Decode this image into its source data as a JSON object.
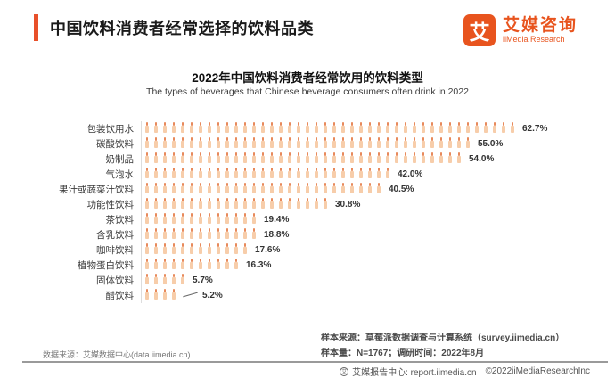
{
  "header": {
    "title": "中国饮料消费者经常选择的饮料品类",
    "logo": {
      "mark": "艾",
      "name_cn": "艾媒咨询",
      "name_en": "iiMedia Research"
    }
  },
  "chart_data": {
    "type": "bar",
    "orientation": "horizontal",
    "pictograph": true,
    "icon": "bottle-icon",
    "title": "2022年中国饮料消费者经常饮用的饮料类型",
    "subtitle": "The types of beverages that Chinese beverage consumers often drink in 2022",
    "categories": [
      "包装饮用水",
      "碳酸饮料",
      "奶制品",
      "气泡水",
      "果汁或蔬菜汁饮料",
      "功能性饮料",
      "茶饮料",
      "含乳饮料",
      "咖啡饮料",
      "植物蛋白饮料",
      "固体饮料",
      "醋饮料"
    ],
    "values": [
      62.7,
      55.0,
      54.0,
      42.0,
      40.5,
      30.8,
      19.4,
      18.8,
      17.6,
      16.3,
      5.7,
      5.2
    ],
    "value_labels": [
      "62.7%",
      "55.0%",
      "54.0%",
      "42.0%",
      "40.5%",
      "30.8%",
      "19.4%",
      "18.8%",
      "17.6%",
      "16.3%",
      "5.7%",
      "5.2%"
    ],
    "icon_counts": [
      42,
      37,
      36,
      28,
      27,
      21,
      13,
      13,
      12,
      11,
      5,
      4
    ],
    "unit": "%",
    "xlim": [
      0,
      70
    ],
    "xlabel": "",
    "ylabel": "",
    "grid": false,
    "legend": false,
    "callout_category": "醋饮料"
  },
  "footnotes": {
    "data_source": "数据来源：艾媒数据中心(data.iimedia.cn)",
    "sample_source": "样本来源：草莓派数据调查与计算系统（survey.iimedia.cn）",
    "sample_size": "样本量：N=1767；调研时间：2022年8月"
  },
  "footer": {
    "report_center": "艾媒报告中心: report.iimedia.cn",
    "copyright": "©2022iiMediaResearchInc"
  },
  "colors": {
    "accent": "#e8541e",
    "header_bar": "#e8502a",
    "bottle_body": "#f7cdaa",
    "bottle_neck": "#e8895b",
    "axis_line": "#dddddd",
    "separator": "#9a9a9a"
  }
}
